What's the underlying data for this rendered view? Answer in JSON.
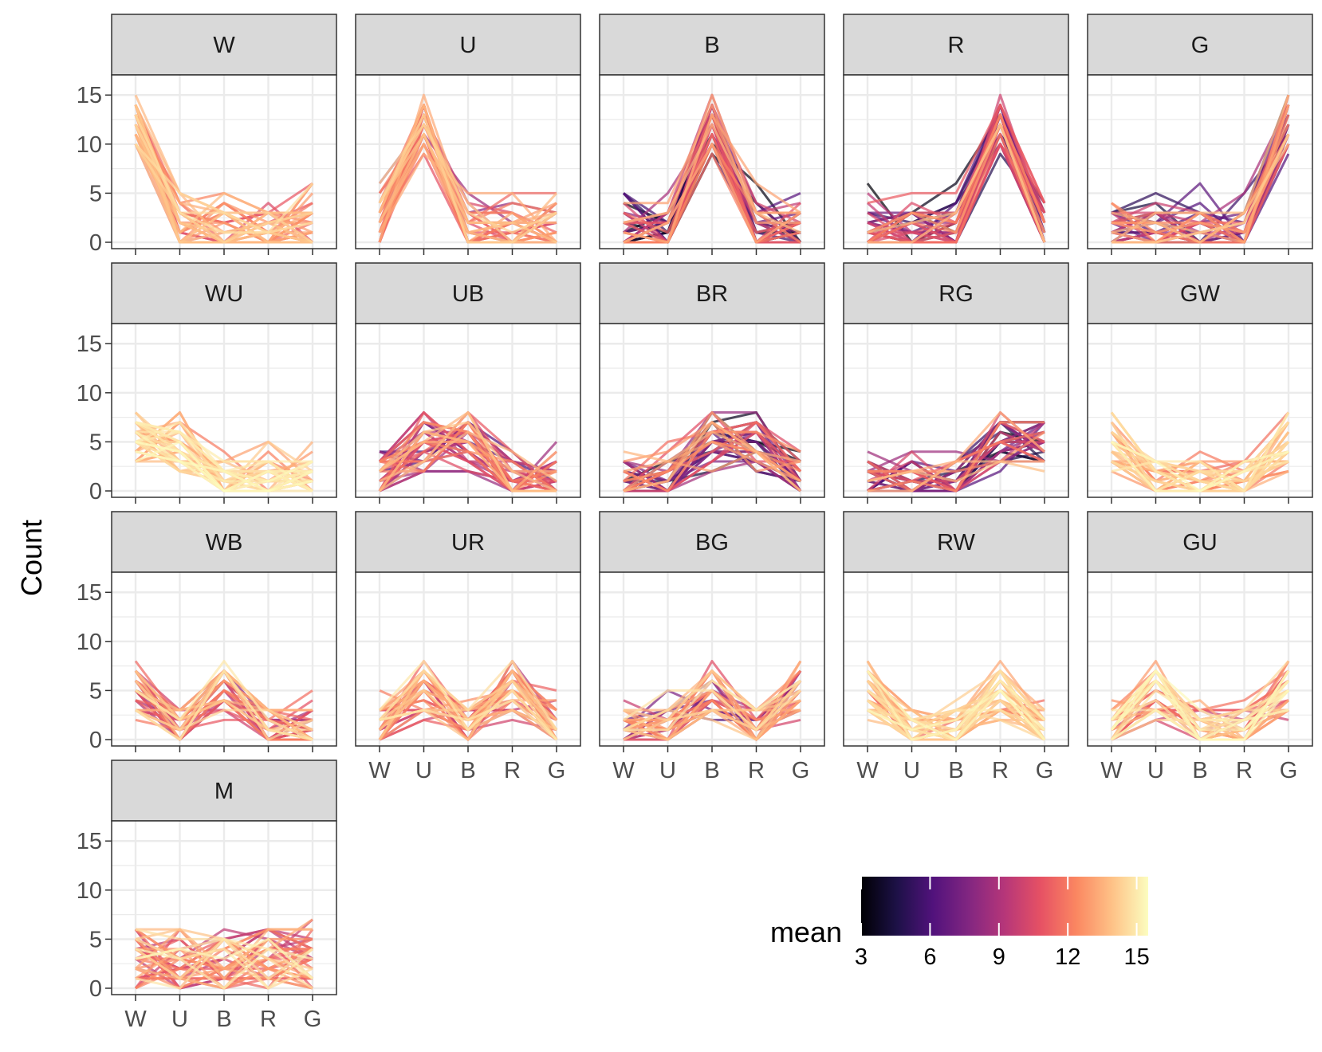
{
  "chart_data": {
    "type": "line",
    "ylabel": "Count",
    "x_categories": [
      "W",
      "U",
      "B",
      "R",
      "G"
    ],
    "y_ticks": [
      0,
      5,
      10,
      15
    ],
    "ylim": [
      0,
      15
    ],
    "grid": true,
    "legend": {
      "title": "mean",
      "placement": "bottom-right",
      "range": [
        3,
        15.5
      ],
      "ticks": [
        3,
        6,
        9,
        12,
        15
      ],
      "palette": [
        "#000004",
        "#1d1147",
        "#51127c",
        "#822681",
        "#b63679",
        "#e65164",
        "#fb8761",
        "#fec287",
        "#fcfdbf"
      ]
    },
    "panels": [
      {
        "label": "W",
        "series_summary": {
          "typical": [
            12,
            2,
            1,
            1,
            1
          ],
          "max": [
            15,
            7,
            6,
            6,
            6
          ],
          "min": [
            9,
            0,
            0,
            0,
            0
          ],
          "mean_range": [
            10,
            15
          ]
        }
      },
      {
        "label": "U",
        "series_summary": {
          "typical": [
            2,
            12,
            1,
            1,
            1
          ],
          "max": [
            7,
            15,
            6,
            6,
            6
          ],
          "min": [
            0,
            9,
            0,
            0,
            0
          ],
          "mean_range": [
            8,
            15
          ]
        }
      },
      {
        "label": "B",
        "series_summary": {
          "typical": [
            1,
            1,
            12,
            1,
            1
          ],
          "max": [
            6,
            6,
            15,
            7,
            6
          ],
          "min": [
            0,
            0,
            9,
            0,
            0
          ],
          "mean_range": [
            3,
            14
          ]
        }
      },
      {
        "label": "R",
        "series_summary": {
          "typical": [
            1,
            1,
            1,
            12,
            1
          ],
          "max": [
            6,
            6,
            6,
            15,
            7
          ],
          "min": [
            0,
            0,
            0,
            9,
            0
          ],
          "mean_range": [
            3,
            14
          ]
        }
      },
      {
        "label": "G",
        "series_summary": {
          "typical": [
            1,
            1,
            1,
            1,
            12
          ],
          "max": [
            6,
            6,
            6,
            6,
            15
          ],
          "min": [
            0,
            0,
            0,
            0,
            9
          ],
          "mean_range": [
            4,
            15
          ]
        }
      },
      {
        "label": "WU",
        "series_summary": {
          "typical": [
            5,
            5,
            1,
            1,
            1
          ],
          "max": [
            8,
            8,
            5,
            5,
            5
          ],
          "min": [
            2,
            2,
            0,
            0,
            0
          ],
          "mean_range": [
            12,
            15.5
          ]
        }
      },
      {
        "label": "UB",
        "series_summary": {
          "typical": [
            1,
            5,
            5,
            1,
            1
          ],
          "max": [
            5,
            8,
            8,
            5,
            5
          ],
          "min": [
            0,
            2,
            2,
            0,
            0
          ],
          "mean_range": [
            6,
            14
          ]
        }
      },
      {
        "label": "BR",
        "series_summary": {
          "typical": [
            1,
            1,
            5,
            5,
            1
          ],
          "max": [
            5,
            5,
            8,
            8,
            5
          ],
          "min": [
            0,
            0,
            2,
            2,
            0
          ],
          "mean_range": [
            3,
            14
          ]
        }
      },
      {
        "label": "RG",
        "series_summary": {
          "typical": [
            1,
            1,
            1,
            5,
            5
          ],
          "max": [
            5,
            5,
            5,
            8,
            8
          ],
          "min": [
            0,
            0,
            0,
            2,
            2
          ],
          "mean_range": [
            3,
            14
          ]
        }
      },
      {
        "label": "GW",
        "series_summary": {
          "typical": [
            5,
            1,
            1,
            1,
            5
          ],
          "max": [
            8,
            5,
            5,
            5,
            8
          ],
          "min": [
            2,
            0,
            0,
            0,
            2
          ],
          "mean_range": [
            11,
            15.5
          ]
        }
      },
      {
        "label": "WB",
        "series_summary": {
          "typical": [
            5,
            1,
            5,
            1,
            1
          ],
          "max": [
            8,
            4,
            8,
            5,
            5
          ],
          "min": [
            2,
            0,
            2,
            0,
            0
          ],
          "mean_range": [
            8,
            15
          ]
        }
      },
      {
        "label": "UR",
        "series_summary": {
          "typical": [
            1,
            5,
            1,
            5,
            1
          ],
          "max": [
            5,
            8,
            5,
            8,
            5
          ],
          "min": [
            0,
            2,
            0,
            2,
            0
          ],
          "mean_range": [
            9,
            15
          ]
        }
      },
      {
        "label": "BG",
        "series_summary": {
          "typical": [
            1,
            1,
            5,
            1,
            5
          ],
          "max": [
            4,
            5,
            8,
            5,
            8
          ],
          "min": [
            0,
            0,
            2,
            0,
            2
          ],
          "mean_range": [
            6,
            15
          ]
        }
      },
      {
        "label": "RW",
        "series_summary": {
          "typical": [
            5,
            1,
            1,
            5,
            1
          ],
          "max": [
            8,
            4,
            4,
            8,
            4
          ],
          "min": [
            2,
            0,
            0,
            2,
            0
          ],
          "mean_range": [
            11,
            15.5
          ]
        }
      },
      {
        "label": "GU",
        "series_summary": {
          "typical": [
            1,
            5,
            1,
            1,
            5
          ],
          "max": [
            4,
            8,
            4,
            4,
            8
          ],
          "min": [
            0,
            2,
            0,
            0,
            2
          ],
          "mean_range": [
            9,
            15.5
          ]
        }
      },
      {
        "label": "M",
        "series_summary": {
          "typical": [
            3,
            3,
            3,
            3,
            3
          ],
          "max": [
            7,
            7,
            7,
            7,
            7
          ],
          "min": [
            0,
            0,
            0,
            0,
            0
          ],
          "mean_range": [
            9,
            15.5
          ]
        }
      }
    ]
  }
}
